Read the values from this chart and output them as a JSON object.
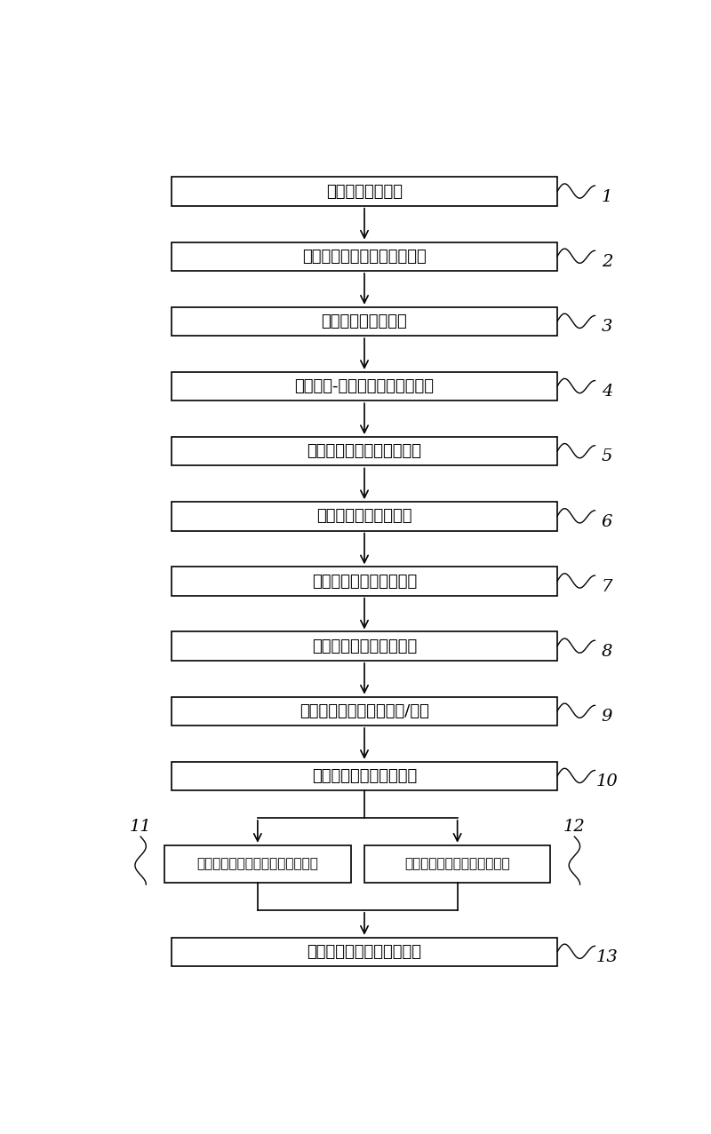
{
  "boxes": [
    {
      "id": 1,
      "text": "建立物理结构模型"
    },
    {
      "id": 2,
      "text": "建立海缆温度场、应变场模型"
    },
    {
      "id": 3,
      "text": "生成温度对应数据库"
    },
    {
      "id": 4,
      "text": "建立应变-布里渊散射对应数据库"
    },
    {
      "id": 5,
      "text": "连接光纤布里渊散射测试仪"
    },
    {
      "id": 6,
      "text": "连接电源谐波测试设备"
    },
    {
      "id": 7,
      "text": "区分引起频率偏移的起因"
    },
    {
      "id": 8,
      "text": "监测频率偏移和电源谐波"
    },
    {
      "id": 9,
      "text": "得到海缆所在位置的温度/应变"
    },
    {
      "id": 10,
      "text": "区分引起频率偏移的起因"
    }
  ],
  "branch_boxes": [
    {
      "id": 11,
      "text": "若是温度升高，海缆安全状态判断"
    },
    {
      "id": 12,
      "text": "若是外力应变，进行警告预防"
    }
  ],
  "final_box": {
    "id": 13,
    "text": "海缆损坏，得出故障点位置"
  },
  "bg_color": "#ffffff",
  "box_edge_color": "#000000",
  "box_fill_color": "#ffffff",
  "arrow_color": "#000000"
}
